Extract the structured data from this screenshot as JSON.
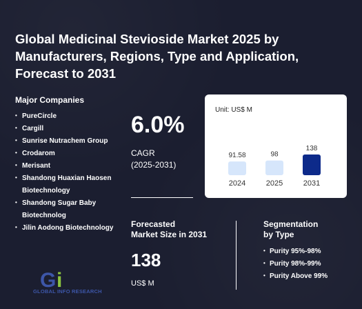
{
  "title": "Global Medicinal Stevioside Market 2025 by Manufacturers, Regions, Type and Application, Forecast to 2031",
  "companies": {
    "heading": "Major Companies",
    "items": [
      "PureCircle",
      "Cargill",
      "Sunrise Nutrachem Group",
      "Crodarom",
      "Merisant",
      "Shandong Huaxian Haosen Biotechnology",
      "Shandong Sugar Baby Biotechnolog",
      "Jilin Aodong Biotechnology"
    ]
  },
  "cagr": {
    "value": "6.0%",
    "label_line1": "CAGR",
    "label_line2": "(2025-2031)"
  },
  "chart_data": {
    "type": "bar",
    "unit_label": "Unit: US$ M",
    "categories": [
      "2024",
      "2025",
      "2031"
    ],
    "values": [
      91.58,
      98,
      138
    ],
    "value_labels": [
      "91.58",
      "98",
      "138"
    ],
    "colors": [
      "#d6e6fb",
      "#d6e6fb",
      "#0d2a8a"
    ]
  },
  "forecast": {
    "label_line1": "Forecasted",
    "label_line2": "Market Size in 2031",
    "value": "138",
    "unit": "US$ M"
  },
  "segmentation": {
    "heading_line1": "Segmentation",
    "heading_line2": "by Type",
    "items": [
      "Purity 95%-98%",
      "Purity 98%-99%",
      "Purity Above 99%"
    ]
  },
  "logo": {
    "text": "GLOBAL INFO RESEARCH",
    "colors": [
      "#3d56a8",
      "#8dc63f"
    ]
  }
}
